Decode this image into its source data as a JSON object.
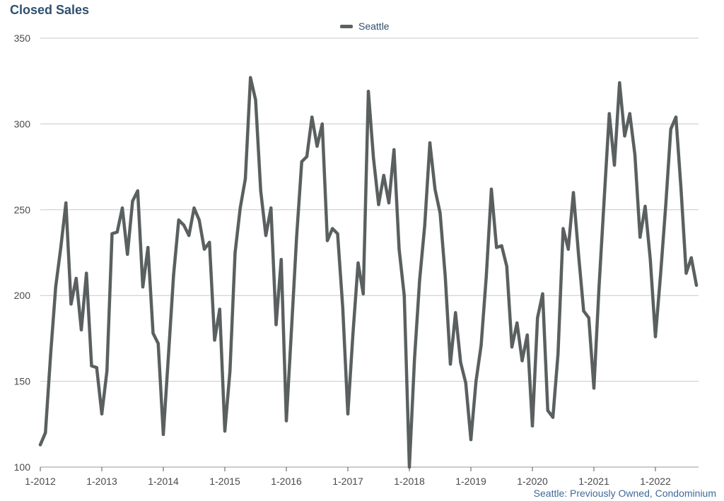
{
  "chart_title": "Closed Sales",
  "footer_note": "Seattle: Previously Owned, Condominium",
  "colors": {
    "line": "#5a6060",
    "grid": "#c8c8c8",
    "title": "#2f4f6f",
    "footer": "#3e6a9a"
  },
  "chart_data": {
    "type": "line",
    "title": "Closed Sales",
    "xlabel": "",
    "ylabel": "",
    "ylim": [
      100,
      350
    ],
    "yticks": [
      100,
      150,
      200,
      250,
      300,
      350
    ],
    "xtick_labels": [
      "1-2012",
      "1-2013",
      "1-2014",
      "1-2015",
      "1-2016",
      "1-2017",
      "1-2018",
      "1-2019",
      "1-2020",
      "1-2021",
      "1-2022"
    ],
    "grid": true,
    "legend_position": "top-center",
    "x_start": "2012-01",
    "frequency": "monthly",
    "series": [
      {
        "name": "Seattle",
        "values": [
          113,
          120,
          165,
          205,
          228,
          254,
          195,
          210,
          180,
          213,
          159,
          158,
          131,
          156,
          236,
          237,
          251,
          224,
          255,
          261,
          205,
          228,
          178,
          172,
          119,
          165,
          212,
          244,
          241,
          235,
          251,
          244,
          227,
          231,
          174,
          192,
          121,
          156,
          225,
          251,
          268,
          327,
          314,
          261,
          235,
          251,
          183,
          221,
          127,
          180,
          234,
          278,
          281,
          304,
          287,
          300,
          232,
          239,
          236,
          193,
          131,
          178,
          219,
          201,
          319,
          280,
          253,
          270,
          254,
          285,
          227,
          200,
          100,
          163,
          209,
          241,
          289,
          262,
          248,
          211,
          160,
          190,
          161,
          149,
          116,
          150,
          171,
          211,
          262,
          228,
          229,
          217,
          170,
          184,
          162,
          177,
          124,
          187,
          201,
          133,
          129,
          166,
          239,
          227,
          260,
          224,
          191,
          187,
          146,
          205,
          256,
          306,
          276,
          324,
          293,
          306,
          282,
          234,
          252,
          221,
          176,
          212,
          252,
          297,
          304,
          262,
          213,
          222,
          206
        ]
      }
    ]
  }
}
